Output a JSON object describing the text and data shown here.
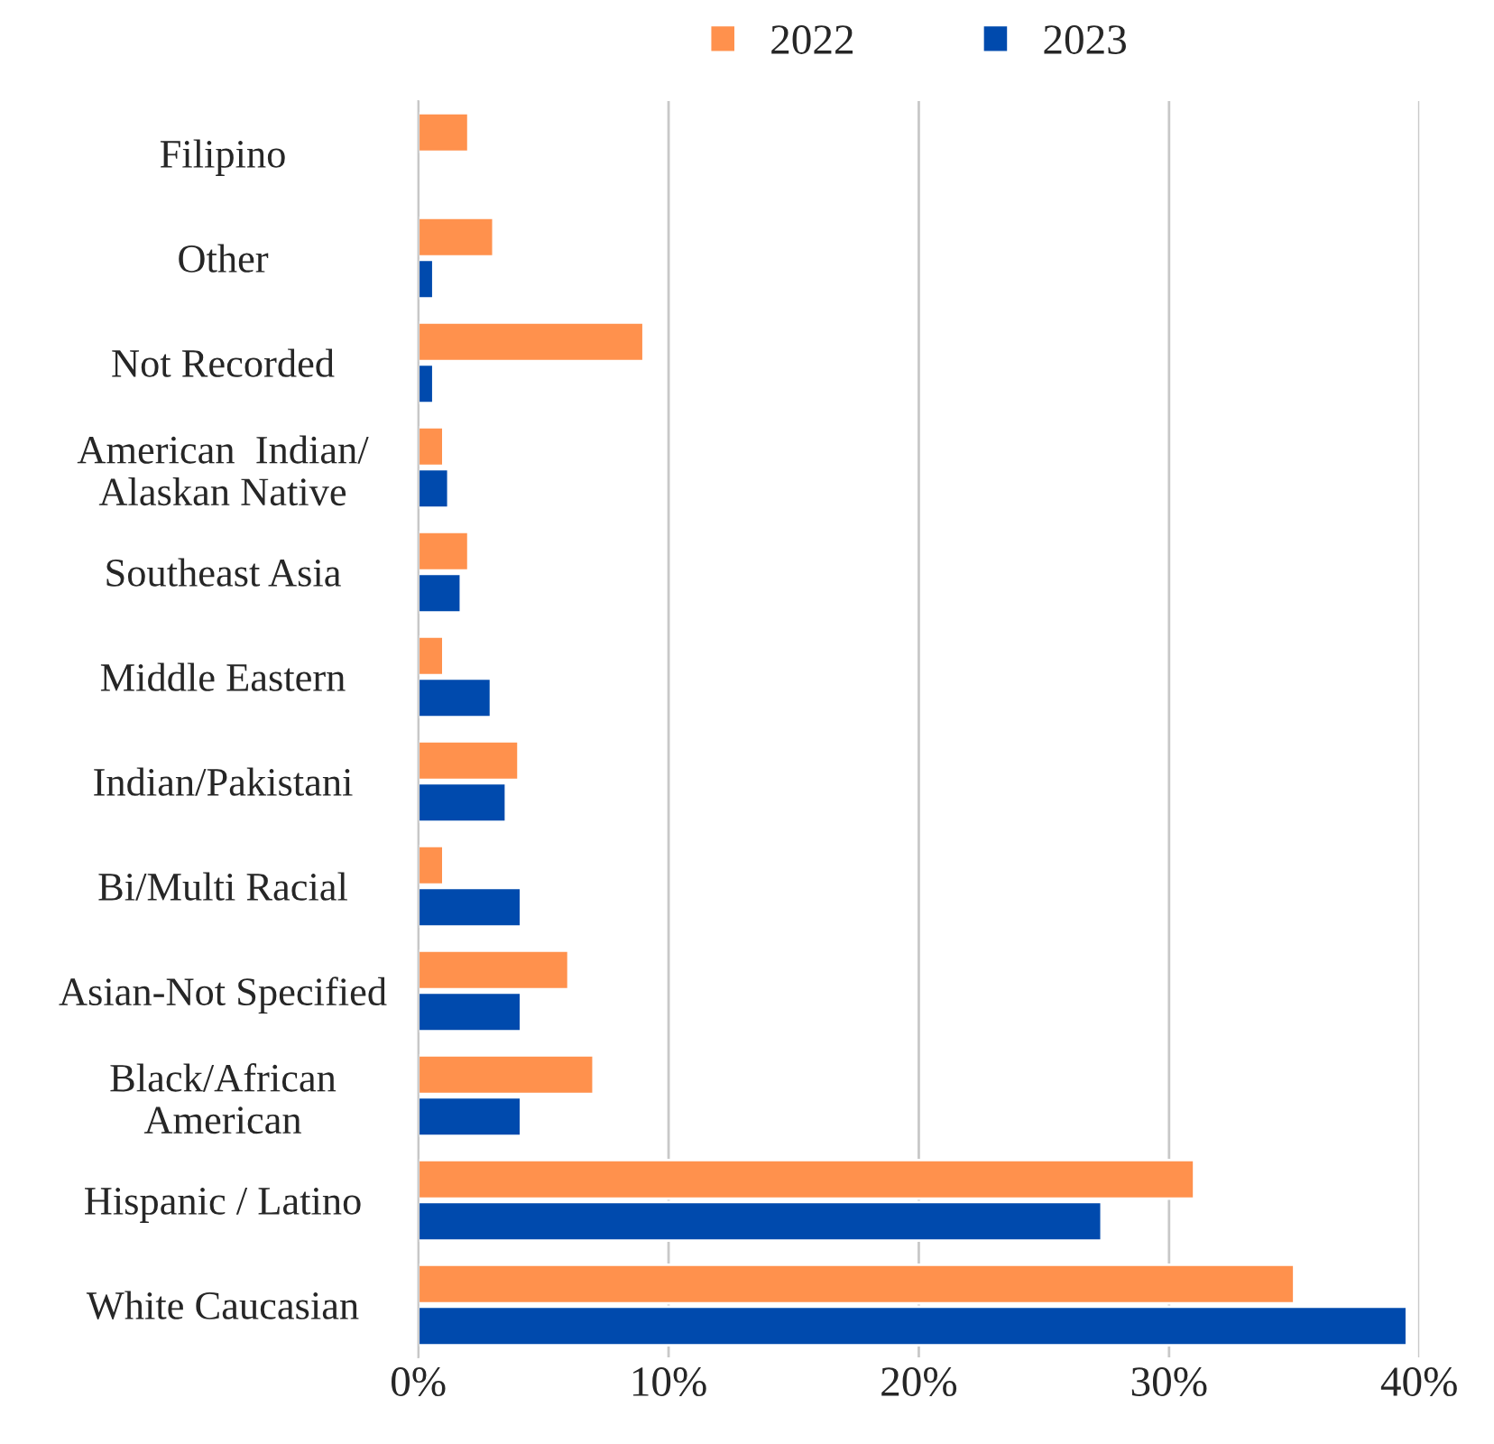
{
  "chart_data": {
    "type": "bar",
    "orientation": "horizontal",
    "categories": [
      "Filipino",
      "Other",
      "Not Recorded",
      "American  Indian/\nAlaskan Native",
      "Southeast Asia",
      "Middle Eastern",
      "Indian/Pakistani",
      "Bi/Multi Racial",
      "Asian-Not Specified",
      "Black/African\nAmerican",
      "Hispanic / Latino",
      "White Caucasian"
    ],
    "series": [
      {
        "name": "2022",
        "color": "#ff914d",
        "values": [
          2,
          3,
          9,
          1,
          2,
          1,
          4,
          1,
          6,
          7,
          31,
          35
        ]
      },
      {
        "name": "2023",
        "color": "#004aad",
        "values": [
          null,
          0.6,
          0.6,
          1.2,
          1.7,
          2.9,
          3.5,
          4.1,
          4.1,
          4.1,
          27.3,
          39.5
        ]
      }
    ],
    "xlim": [
      0,
      40
    ],
    "xticks": [
      {
        "value": 0,
        "label": "0%"
      },
      {
        "value": 10,
        "label": "10%"
      },
      {
        "value": 20,
        "label": "20%"
      },
      {
        "value": 30,
        "label": "30%"
      },
      {
        "value": 40,
        "label": "40%"
      }
    ],
    "grid": "x",
    "legend": "top"
  }
}
